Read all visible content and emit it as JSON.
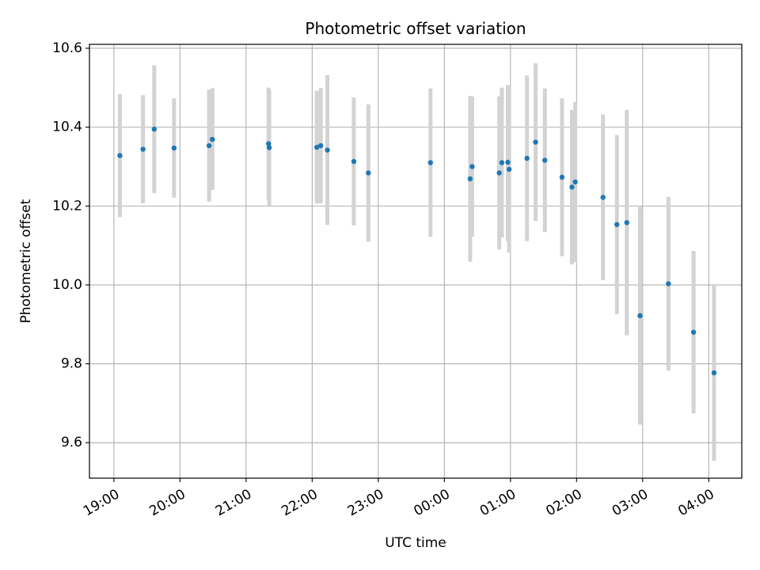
{
  "chart_data": {
    "type": "scatter",
    "title": "Photometric offset variation",
    "xlabel": "UTC time",
    "ylabel": "Photometric offset",
    "x_unit": "hours",
    "xlim": [
      18.63,
      28.5
    ],
    "ylim": [
      9.51,
      10.61
    ],
    "x_ticks": [
      {
        "label": "19:00",
        "value": 19
      },
      {
        "label": "20:00",
        "value": 20
      },
      {
        "label": "21:00",
        "value": 21
      },
      {
        "label": "22:00",
        "value": 22
      },
      {
        "label": "23:00",
        "value": 23
      },
      {
        "label": "00:00",
        "value": 24
      },
      {
        "label": "01:00",
        "value": 25
      },
      {
        "label": "02:00",
        "value": 26
      },
      {
        "label": "03:00",
        "value": 27
      },
      {
        "label": "04:00",
        "value": 28
      }
    ],
    "y_ticks": [
      {
        "label": "9.6",
        "value": 9.6
      },
      {
        "label": "9.8",
        "value": 9.8
      },
      {
        "label": "10.0",
        "value": 10.0
      },
      {
        "label": "10.2",
        "value": 10.2
      },
      {
        "label": "10.4",
        "value": 10.4
      },
      {
        "label": "10.6",
        "value": 10.6
      }
    ],
    "grid": true,
    "colors": {
      "point": "#1f77b4",
      "errorbar": "#d3d3d3",
      "grid": "#b0b0b0"
    },
    "points": [
      {
        "x": 19.09,
        "y": 10.328,
        "ylow": 10.172,
        "yhigh": 10.484
      },
      {
        "x": 19.44,
        "y": 10.344,
        "ylow": 10.207,
        "yhigh": 10.481
      },
      {
        "x": 19.61,
        "y": 10.395,
        "ylow": 10.233,
        "yhigh": 10.557
      },
      {
        "x": 19.91,
        "y": 10.347,
        "ylow": 10.221,
        "yhigh": 10.473
      },
      {
        "x": 20.44,
        "y": 10.353,
        "ylow": 10.211,
        "yhigh": 10.495
      },
      {
        "x": 20.49,
        "y": 10.369,
        "ylow": 10.241,
        "yhigh": 10.499
      },
      {
        "x": 21.34,
        "y": 10.358,
        "ylow": 10.216,
        "yhigh": 10.5
      },
      {
        "x": 21.35,
        "y": 10.348,
        "ylow": 10.201,
        "yhigh": 10.495
      },
      {
        "x": 22.07,
        "y": 10.349,
        "ylow": 10.206,
        "yhigh": 10.492
      },
      {
        "x": 22.13,
        "y": 10.353,
        "ylow": 10.207,
        "yhigh": 10.499
      },
      {
        "x": 22.23,
        "y": 10.342,
        "ylow": 10.152,
        "yhigh": 10.532
      },
      {
        "x": 22.63,
        "y": 10.313,
        "ylow": 10.151,
        "yhigh": 10.475
      },
      {
        "x": 22.85,
        "y": 10.284,
        "ylow": 10.11,
        "yhigh": 10.458
      },
      {
        "x": 23.79,
        "y": 10.31,
        "ylow": 10.122,
        "yhigh": 10.498
      },
      {
        "x": 24.39,
        "y": 10.269,
        "ylow": 10.059,
        "yhigh": 10.479
      },
      {
        "x": 24.42,
        "y": 10.3,
        "ylow": 10.122,
        "yhigh": 10.478
      },
      {
        "x": 24.83,
        "y": 10.284,
        "ylow": 10.09,
        "yhigh": 10.478
      },
      {
        "x": 24.87,
        "y": 10.31,
        "ylow": 10.12,
        "yhigh": 10.5
      },
      {
        "x": 24.96,
        "y": 10.311,
        "ylow": 10.111,
        "yhigh": 10.507
      },
      {
        "x": 24.98,
        "y": 10.293,
        "ylow": 10.082,
        "yhigh": 10.504
      },
      {
        "x": 25.25,
        "y": 10.321,
        "ylow": 10.111,
        "yhigh": 10.531
      },
      {
        "x": 25.38,
        "y": 10.362,
        "ylow": 10.162,
        "yhigh": 10.562
      },
      {
        "x": 25.52,
        "y": 10.316,
        "ylow": 10.134,
        "yhigh": 10.498
      },
      {
        "x": 25.78,
        "y": 10.273,
        "ylow": 10.073,
        "yhigh": 10.473
      },
      {
        "x": 25.93,
        "y": 10.248,
        "ylow": 10.052,
        "yhigh": 10.444
      },
      {
        "x": 25.98,
        "y": 10.261,
        "ylow": 10.058,
        "yhigh": 10.464
      },
      {
        "x": 26.4,
        "y": 10.222,
        "ylow": 10.012,
        "yhigh": 10.432
      },
      {
        "x": 26.61,
        "y": 10.153,
        "ylow": 9.926,
        "yhigh": 10.38
      },
      {
        "x": 26.76,
        "y": 10.158,
        "ylow": 9.872,
        "yhigh": 10.444
      },
      {
        "x": 26.96,
        "y": 9.922,
        "ylow": 9.646,
        "yhigh": 10.198
      },
      {
        "x": 27.39,
        "y": 10.003,
        "ylow": 9.783,
        "yhigh": 10.223
      },
      {
        "x": 27.77,
        "y": 9.88,
        "ylow": 9.674,
        "yhigh": 10.086
      },
      {
        "x": 28.08,
        "y": 9.777,
        "ylow": 9.554,
        "yhigh": 10.0
      }
    ]
  }
}
